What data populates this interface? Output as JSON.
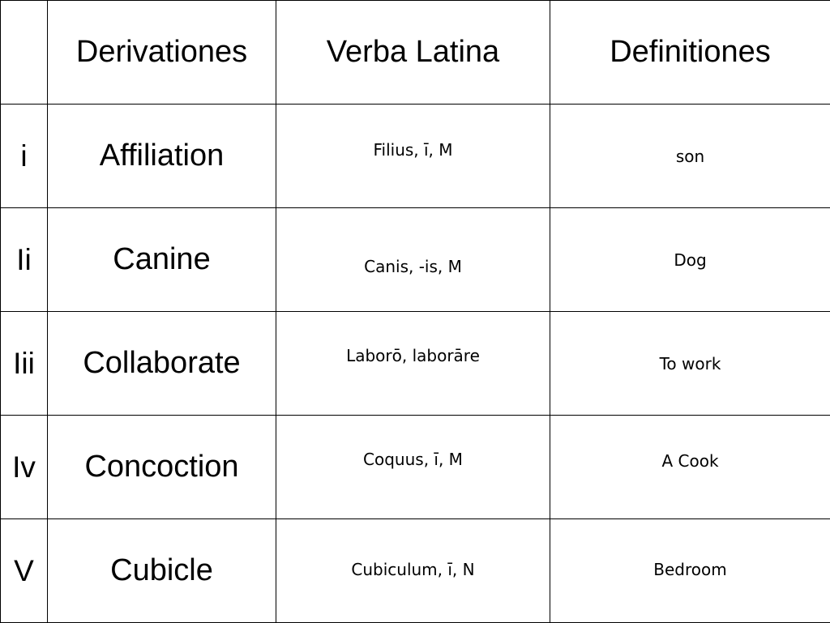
{
  "headers": {
    "number": "",
    "derivationes": "Derivationes",
    "verba_latina": "Verba Latina",
    "definitiones": "Definitiones"
  },
  "rows": [
    {
      "number": "i",
      "derivation": "Affiliation",
      "latin": "Filius, ī, M",
      "definition": "son"
    },
    {
      "number": "Ii",
      "derivation": "Canine",
      "latin": "Canis, -is, M",
      "definition": "Dog"
    },
    {
      "number": "Iii",
      "derivation": "Collaborate",
      "latin": "Laborō, laborāre",
      "definition": "To work"
    },
    {
      "number": "Iv",
      "derivation": "Concoction",
      "latin": "Coquus, ī, M",
      "definition": "A Cook"
    },
    {
      "number": "V",
      "derivation": "Cubicle",
      "latin": "Cubiculum, ī, N",
      "definition": "Bedroom"
    }
  ],
  "colors": {
    "text": "#000000",
    "definition_text": "#cc00cc",
    "border": "#000000",
    "background": "#ffffff"
  }
}
